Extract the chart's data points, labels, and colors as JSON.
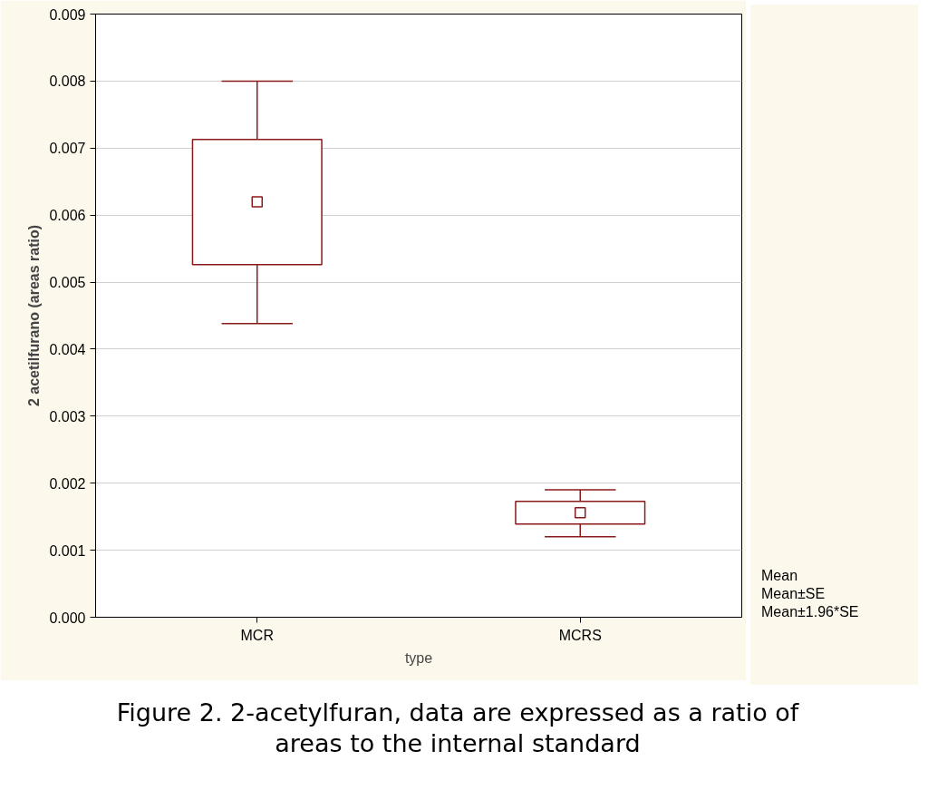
{
  "chart_data": {
    "type": "box",
    "categories": [
      "MCR",
      "MCRS"
    ],
    "xlabel": "type",
    "ylabel": "2 acetilfurano (areas ratio)",
    "ylim": [
      0,
      0.009
    ],
    "yticks": [
      {
        "value": 0,
        "label": "0.000"
      },
      0.001,
      0.002,
      0.003,
      0.004,
      0.005,
      0.006,
      0.007,
      0.008,
      0.009
    ],
    "grid": "y",
    "marker": "square",
    "series": [
      {
        "color": "#8b1a1a",
        "boxes": [
          {
            "low": 0.00438,
            "q1": 0.00526,
            "q3": 0.00713,
            "high": 0.008,
            "mean": 0.0062
          },
          {
            "low": 0.0012,
            "q1": 0.00139,
            "q3": 0.00173,
            "high": 0.0019,
            "mean": 0.00156
          }
        ]
      }
    ],
    "annotations": [
      "Figure 2. 2-acetylfuran, data are expressed as a ratio of areas to the internal standard",
      "Mean",
      "Mean±SE",
      "Mean±1.96*SE"
    ]
  }
}
